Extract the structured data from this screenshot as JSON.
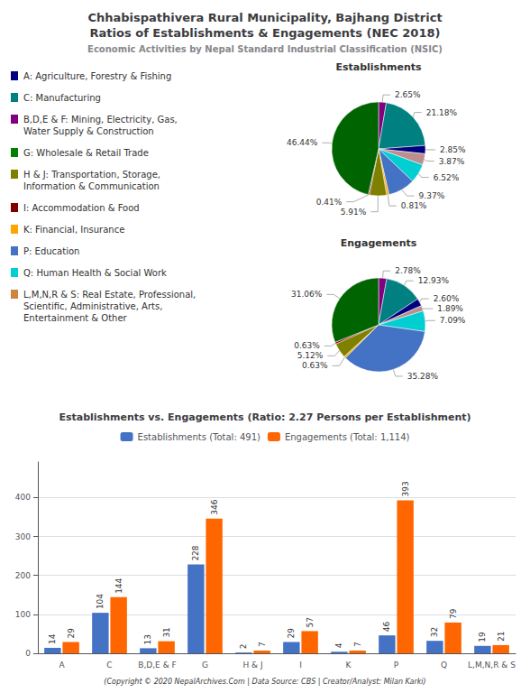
{
  "title": "Chhabispathivera Rural Municipality, Bajhang District\nRatios of Establishments & Engagements (NEC 2018)",
  "subtitle": "Economic Activities by Nepal Standard Industrial Classification (NSIC)",
  "annotations": [
    "(Copyright © 2020 NepalArchives.Com | Data Source: CBS | Creator/Analyst: Milan Karki)"
  ],
  "chart_data": [
    {
      "type": "legend",
      "categories": [
        "A: Agriculture, Forestry & Fishing",
        "C: Manufacturing",
        "B,D,E & F: Mining, Electricity, Gas,\nWater Supply & Construction",
        "G: Wholesale & Retail Trade",
        "H & J: Transportation, Storage,\nInformation & Communication",
        "I: Accommodation & Food",
        "K: Financial, Insurance",
        "P: Education",
        "Q: Human Health & Social Work",
        "L,M,N,R & S: Real Estate, Professional,\nScientific, Administrative, Arts,\nEntertainment & Other"
      ],
      "colors": [
        "#000080",
        "#008080",
        "#800080",
        "#008000",
        "#808000",
        "#800000",
        "#FFA500",
        "#4472C4",
        "#00CED1",
        "#CD853F"
      ]
    },
    {
      "type": "pie",
      "title": "Establishments",
      "values": [
        2.65,
        21.18,
        2.85,
        3.87,
        6.52,
        9.37,
        0.81,
        5.91,
        0.41,
        46.44
      ],
      "value_labels": [
        "2.65%",
        "21.18%",
        "2.85%",
        "3.87%",
        "6.52%",
        "9.37%",
        "0.81%",
        "5.91%",
        "0.41%",
        "46.44%"
      ],
      "colors": [
        "#800080",
        "#008080",
        "#000080",
        "#BC8F8F",
        "#00CED1",
        "#4472C4",
        "#FFA500",
        "#808000",
        "#8B0000",
        "#006400"
      ],
      "data_labels": true
    },
    {
      "type": "pie",
      "title": "Engagements",
      "values": [
        2.78,
        12.93,
        2.6,
        1.89,
        7.09,
        35.28,
        0.63,
        5.12,
        0.63,
        31.06
      ],
      "value_labels": [
        "2.78%",
        "12.93%",
        "2.60%",
        "1.89%",
        "7.09%",
        "35.28%",
        "0.63%",
        "5.12%",
        "0.63%",
        "31.06%"
      ],
      "colors": [
        "#800080",
        "#008080",
        "#000080",
        "#BC8F8F",
        "#00CED1",
        "#4472C4",
        "#FFA500",
        "#808000",
        "#8B0000",
        "#006400"
      ],
      "data_labels": true
    },
    {
      "type": "bar",
      "title": "Establishments vs. Engagements (Ratio: 2.27 Persons per Establishment)",
      "categories": [
        "A",
        "C",
        "B,D,E & F",
        "G",
        "H & J",
        "I",
        "K",
        "P",
        "Q",
        "L,M,N,R & S"
      ],
      "series": [
        {
          "name": "Establishments (Total: 491)",
          "color": "#4472C4",
          "values": [
            14,
            104,
            13,
            228,
            2,
            29,
            4,
            46,
            32,
            19
          ]
        },
        {
          "name": "Engagements (Total: 1,114)",
          "color": "#FF6600",
          "values": [
            29,
            144,
            31,
            346,
            7,
            57,
            7,
            393,
            79,
            21
          ]
        }
      ],
      "ylim": [
        0,
        491.25
      ],
      "yticks": [
        0,
        100,
        200,
        300,
        400
      ],
      "grid": true,
      "legend": "top",
      "data_labels": true
    }
  ]
}
